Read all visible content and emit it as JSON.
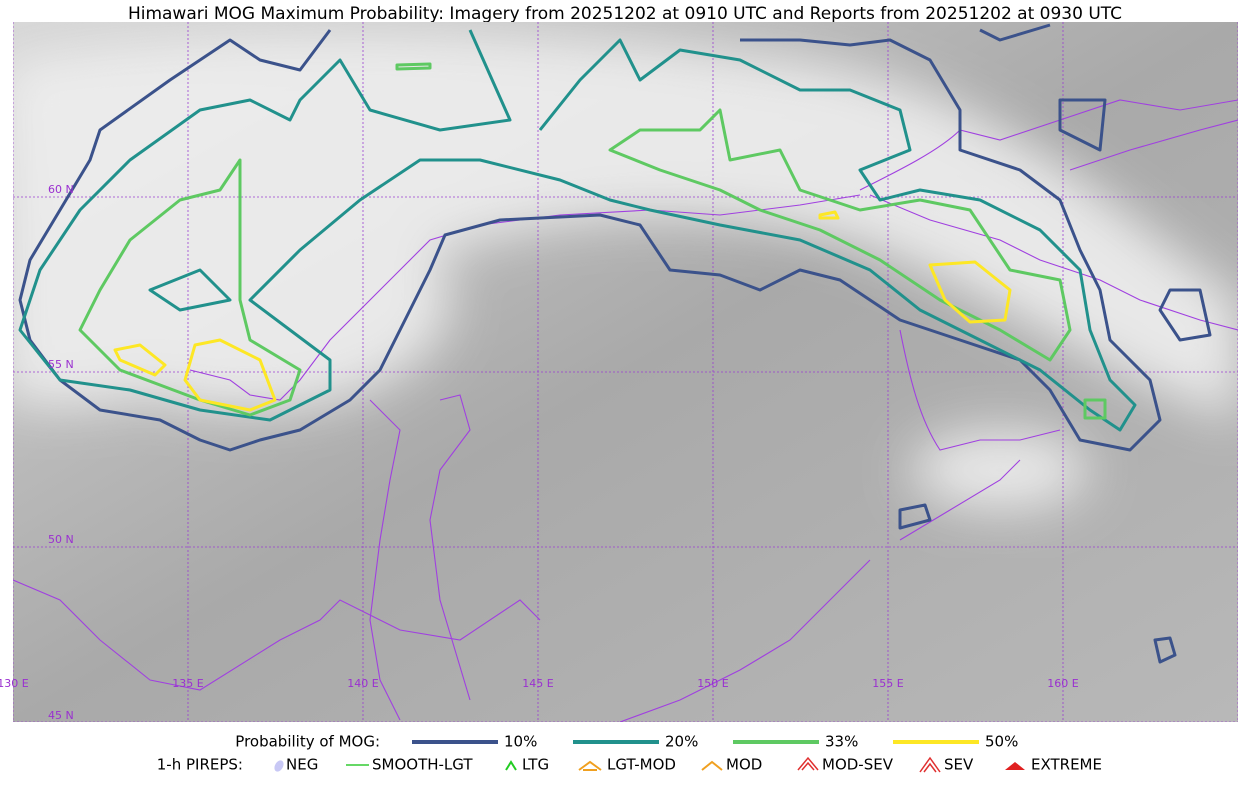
{
  "header": {
    "title": "Himawari MOG Maximum Probability: Imagery from 20251202 at 0910 UTC and Reports from 20251202 at 0930 UTC"
  },
  "map": {
    "lat_labels": [
      "60 N",
      "55 N",
      "50 N",
      "45 N"
    ],
    "lon_labels": [
      "130 E",
      "135 E",
      "140 E",
      "145 E",
      "150 E",
      "155 E",
      "160 E"
    ]
  },
  "legend": {
    "mog_title": "Probability of MOG:",
    "mog_levels": [
      {
        "label": "10%",
        "color": "#3b528b"
      },
      {
        "label": "20%",
        "color": "#21918c"
      },
      {
        "label": "33%",
        "color": "#5ec962"
      },
      {
        "label": "50%",
        "color": "#fde725"
      }
    ],
    "pireps_title": "1-h PIREPS:",
    "pireps": [
      "NEG",
      "SMOOTH-LGT",
      "LTG",
      "LGT-MOD",
      "MOD",
      "MOD-SEV",
      "SEV",
      "EXTREME"
    ]
  }
}
